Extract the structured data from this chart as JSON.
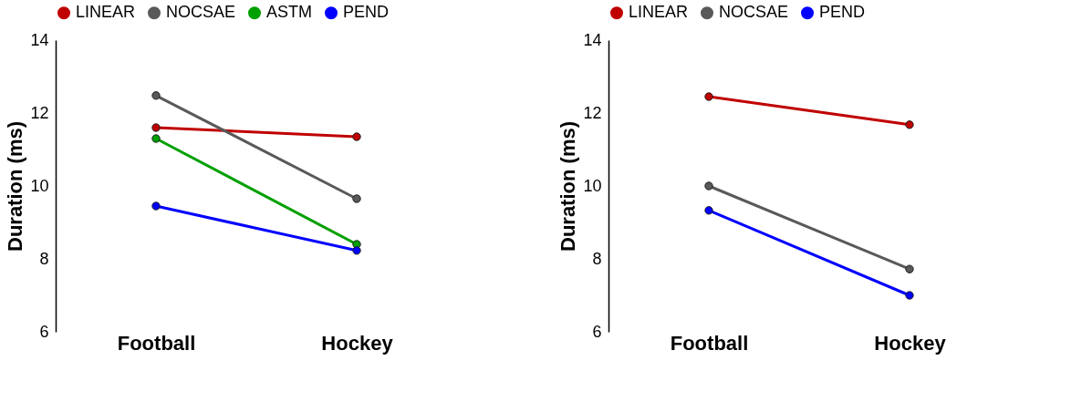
{
  "chart_data": [
    {
      "type": "line",
      "categories": [
        "Football",
        "Hockey"
      ],
      "ylabel": "Duration (ms)",
      "ylim": [
        6,
        14
      ],
      "yticks": [
        6,
        8,
        10,
        12,
        14
      ],
      "grid": false,
      "legend": "top left",
      "marker": "circle",
      "line_style": "solid",
      "series": [
        {
          "name": "LINEAR",
          "color": "#c00000",
          "values": [
            11.6,
            11.35
          ]
        },
        {
          "name": "NOCSAE",
          "color": "#595959",
          "values": [
            12.48,
            9.65
          ]
        },
        {
          "name": "ASTM",
          "color": "#00a000",
          "values": [
            11.3,
            8.4
          ]
        },
        {
          "name": "PEND",
          "color": "#0000ff",
          "values": [
            9.45,
            8.23
          ]
        }
      ]
    },
    {
      "type": "line",
      "categories": [
        "Football",
        "Hockey"
      ],
      "ylabel": "Duration (ms)",
      "ylim": [
        6,
        14
      ],
      "yticks": [
        6,
        8,
        10,
        12,
        14
      ],
      "grid": false,
      "legend": "top left",
      "marker": "circle",
      "line_style": "solid",
      "series": [
        {
          "name": "LINEAR",
          "color": "#c00000",
          "values": [
            12.45,
            11.68
          ]
        },
        {
          "name": "NOCSAE",
          "color": "#595959",
          "values": [
            10.0,
            7.72
          ]
        },
        {
          "name": "PEND",
          "color": "#0000ff",
          "values": [
            9.33,
            7.0
          ]
        }
      ]
    }
  ]
}
